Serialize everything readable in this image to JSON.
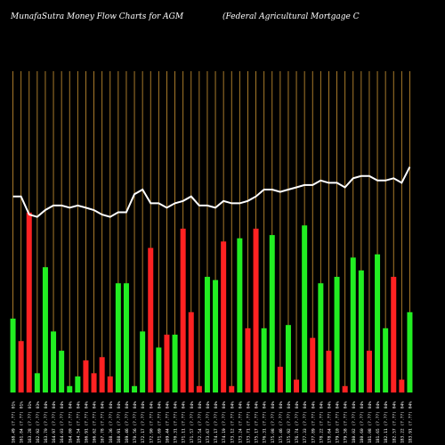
{
  "title_left": "MunafaSutra  Money Flow  Charts for AGM",
  "title_right": "(Federal Agricultural Mortgage    C",
  "chart_data": {
    "type": "bar",
    "bar_ylim": [
      0,
      100
    ],
    "line_ylim": [
      0,
      100
    ],
    "categories": [
      "168.49 (?.??) 01%",
      "161.84 (?.??) 01%",
      "163.28 (?.??) 01%",
      "162.92 (?.??) 03%",
      "163.70 (?.??) 04%",
      "164.97 (?.??) 04%",
      "164.03 (?.??) 04%",
      "164.00 (?.??) 04%",
      "164.54 (?.??) 04%",
      "166.91 (?.??) 04%",
      "166.62 (?.??) 04%",
      "167.78 (?.??) 04%",
      "168.36 (?.??) 04%",
      "168.91 (?.??) 04%",
      "169.46 (?.??) 04%",
      "170.56 (?.??) 04%",
      "172.17 (?.??) 04%",
      "172.90 (?.??) 04%",
      "171.69 (?.??) 04%",
      "169.44 (?.??) 04%",
      "170.31 (?.??) 04%",
      "171.11 (?.??) 04%",
      "171.57 (?.??) 04%",
      "172.54 (?.??) 04%",
      "173.67 (?.??) 04%",
      "174.17 (?.??) 04%",
      "174.19 (?.??) 04%",
      "173.12 (?.??) 04%",
      "173.24 (?.??) 04%",
      "173.71 (?.??) 04%",
      "175.17 (?.??) 04%",
      "176.31 (?.??) 04%",
      "175.08 (?.??) 04%",
      "175.46 (?.??) 04%",
      "175.92 (?.??) 04%",
      "176.74 (?.??) 04%",
      "177.33 (?.??) 04%",
      "177.89 (?.??) 04%",
      "178.22 (?.??) 04%",
      "178.64 (?.??) 04%",
      "179.10 (?.??) 04%",
      "179.58 (?.??) 04%",
      "180.02 (?.??) 04%",
      "180.60 (?.??) 04%",
      "181.08 (?.??) 04%",
      "181.65 (?.??) 04%",
      "182.11 (?.??) 04%",
      "182.57 (?.??) 04%",
      "183.22 (?.??) 04%",
      "183.91 (?.??) 04%"
    ],
    "series": [
      {
        "values": [
          23,
          16,
          56,
          6,
          39,
          19,
          13,
          2,
          5,
          10,
          6,
          11,
          5,
          34,
          34,
          2,
          19,
          45,
          14,
          18,
          18,
          51,
          25,
          2,
          36,
          35,
          47,
          2,
          48,
          20,
          51,
          20,
          49,
          8,
          21,
          4,
          52,
          17,
          34,
          13,
          36,
          2,
          42,
          38,
          13,
          43,
          20,
          36,
          4,
          25
        ],
        "colors": [
          "g",
          "r",
          "r",
          "g",
          "g",
          "g",
          "g",
          "g",
          "g",
          "r",
          "r",
          "r",
          "r",
          "g",
          "g",
          "g",
          "g",
          "r",
          "g",
          "r",
          "g",
          "r",
          "r",
          "r",
          "g",
          "g",
          "r",
          "r",
          "g",
          "r",
          "r",
          "g",
          "g",
          "r",
          "g",
          "r",
          "g",
          "r",
          "g",
          "r",
          "g",
          "r",
          "g",
          "g",
          "r",
          "g",
          "g",
          "r",
          "r",
          "g"
        ]
      },
      {
        "values": [
          86,
          86,
          78,
          77,
          80,
          82,
          82,
          81,
          82,
          81,
          80,
          78,
          77,
          79,
          79,
          87,
          89,
          83,
          83,
          81,
          83,
          84,
          86,
          82,
          82,
          81,
          84,
          83,
          83,
          84,
          86,
          89,
          89,
          88,
          89,
          90,
          91,
          91,
          93,
          92,
          92,
          90,
          94,
          95,
          95,
          93,
          93,
          94,
          92,
          99
        ]
      }
    ],
    "colors": {
      "bar_up": "#22ee22",
      "bar_down": "#ff2222",
      "line": "#ffffff",
      "gridline": "#b8862e",
      "background": "#000000",
      "label": "#ffffff"
    }
  }
}
